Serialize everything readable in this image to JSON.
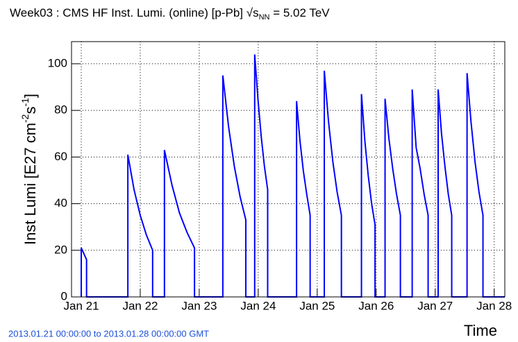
{
  "chart_data": {
    "type": "line",
    "title": [
      "Week03 : CMS HF Inst. Lumi. (online) [p-Pb] √s",
      "NN",
      " = 5.02 TeV"
    ],
    "ylabel": [
      "Inst Lumi [E27 cm",
      "-2",
      "s",
      "-1",
      "]"
    ],
    "xlabel": "Time",
    "footer": "2013.01.21 00:00:00 to 2013.01.28 00:00:00 GMT",
    "xlim": [
      20.835,
      28.18
    ],
    "ylim": [
      0,
      109.5
    ],
    "xticks": [
      {
        "value": 21,
        "label": "Jan 21"
      },
      {
        "value": 22,
        "label": "Jan 22"
      },
      {
        "value": 23,
        "label": "Jan 23"
      },
      {
        "value": 24,
        "label": "Jan 24"
      },
      {
        "value": 25,
        "label": "Jan 25"
      },
      {
        "value": 26,
        "label": "Jan 26"
      },
      {
        "value": 27,
        "label": "Jan 27"
      },
      {
        "value": 28,
        "label": "Jan 28"
      }
    ],
    "yticks": [
      0,
      20,
      40,
      60,
      80,
      100
    ],
    "grid": true,
    "series": [
      {
        "color": "#0000ff",
        "x": [
          21.0,
          21.0,
          21.09,
          21.09,
          21.79,
          21.79,
          21.895,
          22.0,
          22.105,
          22.21,
          22.21,
          22.41,
          22.41,
          22.5375,
          22.665,
          22.7925,
          22.92,
          22.92,
          23.4,
          23.4,
          23.4975,
          23.595,
          23.6925,
          23.79,
          23.79,
          23.94,
          23.94,
          23.995,
          24.05,
          24.105,
          24.16,
          24.16,
          24.65,
          24.65,
          24.7075,
          24.765,
          24.8225,
          24.88,
          24.88,
          25.12,
          25.12,
          25.1925,
          25.265,
          25.3375,
          25.41,
          25.41,
          25.75,
          25.75,
          25.8075,
          25.865,
          25.9225,
          25.98,
          25.98,
          26.15,
          26.15,
          26.215,
          26.28,
          26.345,
          26.41,
          26.41,
          26.61,
          26.61,
          26.6775,
          26.745,
          26.8125,
          26.88,
          26.88,
          27.05,
          27.05,
          27.1075,
          27.165,
          27.2225,
          27.28,
          27.28,
          27.54,
          27.54,
          27.6075,
          27.675,
          27.7425,
          27.81,
          27.81,
          28.18
        ],
        "values": [
          0,
          21,
          16,
          0,
          0,
          61,
          46,
          35,
          26.5,
          20,
          0,
          0,
          63,
          48,
          36,
          27.7,
          21,
          0,
          0,
          95,
          73,
          56,
          43,
          33,
          0,
          0,
          104,
          85,
          69,
          56,
          46,
          0,
          0,
          84,
          67,
          54,
          44,
          35,
          0,
          0,
          97,
          75,
          58,
          45,
          35,
          0,
          0,
          87,
          67,
          52,
          40,
          31,
          0,
          0,
          85,
          68,
          55,
          44,
          35,
          0,
          0,
          89,
          64,
          55,
          44,
          35,
          0,
          0,
          89,
          70,
          56,
          44,
          35,
          0,
          0,
          96,
          75,
          58,
          45,
          35,
          0,
          0
        ]
      }
    ]
  }
}
